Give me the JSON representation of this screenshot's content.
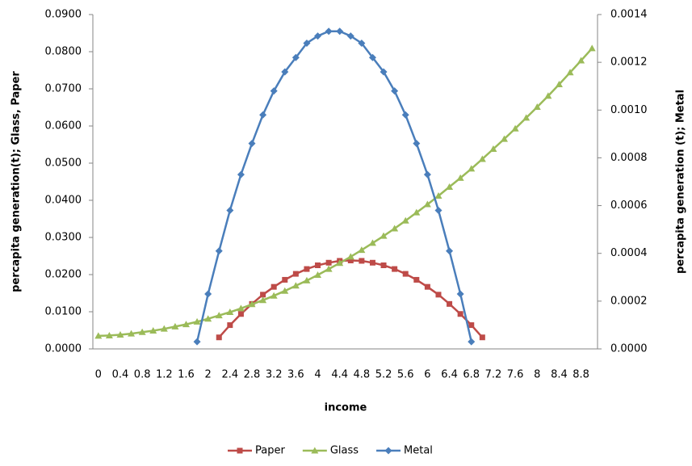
{
  "chart_data": {
    "type": "line",
    "x_label": "income",
    "y_label": "percapita generation(t); Glass,  Paper",
    "y2_label": "percapita generation (t); Metal",
    "categories": [
      "0",
      null,
      "0.4",
      null,
      "0.8",
      null,
      "1.2",
      null,
      "1.6",
      null,
      "2",
      null,
      "2.4",
      null,
      "2.8",
      null,
      "3.2",
      null,
      "3.6",
      null,
      "4",
      null,
      "4.4",
      null,
      "4.8",
      null,
      "5.2",
      null,
      "5.6",
      null,
      "6",
      null,
      "6.4",
      null,
      "6.8",
      null,
      "7.2",
      null,
      "7.6",
      null,
      "8",
      null,
      "8.4",
      null,
      "8.8",
      null
    ],
    "ylim": [
      0,
      0.09
    ],
    "yticks": [
      {
        "value": 0,
        "label": "0.0000"
      },
      {
        "value": 0.01,
        "label": "0.0100"
      },
      {
        "value": 0.02,
        "label": "0.0200"
      },
      {
        "value": 0.03,
        "label": "0.0300"
      },
      {
        "value": 0.04,
        "label": "0.0400"
      },
      {
        "value": 0.05,
        "label": "0.0500"
      },
      {
        "value": 0.06,
        "label": "0.0600"
      },
      {
        "value": 0.07,
        "label": "0.0700"
      },
      {
        "value": 0.08,
        "label": "0.0800"
      },
      {
        "value": 0.09,
        "label": "0.0900"
      }
    ],
    "y2lim": [
      0,
      0.0014
    ],
    "y2ticks": [
      {
        "value": 0,
        "label": "0.0000"
      },
      {
        "value": 0.0002,
        "label": "0.0002"
      },
      {
        "value": 0.0004,
        "label": "0.0004"
      },
      {
        "value": 0.0006,
        "label": "0.0006"
      },
      {
        "value": 0.0008,
        "label": "0.0008"
      },
      {
        "value": 0.001,
        "label": "0.0010"
      },
      {
        "value": 0.0012,
        "label": "0.0012"
      },
      {
        "value": 0.0014,
        "label": "0.0014"
      }
    ],
    "grid": false,
    "legend": "bottom",
    "series": [
      {
        "name": "Paper",
        "color": "#be4b48",
        "marker": "square",
        "values": [
          null,
          null,
          null,
          null,
          null,
          null,
          null,
          null,
          null,
          null,
          null,
          0.0031,
          0.0064,
          0.0094,
          0.0121,
          0.0146,
          0.0167,
          0.0186,
          0.0202,
          0.0215,
          0.0225,
          0.0232,
          0.0237,
          0.0238,
          0.0237,
          0.0232,
          0.0225,
          0.0215,
          0.0202,
          0.0186,
          0.0167,
          0.0146,
          0.0121,
          0.0094,
          0.0064,
          0.0031,
          null,
          null,
          null,
          null,
          null,
          null,
          null,
          null,
          null,
          null
        ]
      },
      {
        "name": "Glass",
        "color": "#9bbb59",
        "marker": "triangle",
        "values": [
          0.0035,
          0.0036,
          0.0038,
          0.0041,
          0.0045,
          0.0049,
          0.0054,
          0.006,
          0.0066,
          0.0073,
          0.0081,
          0.009,
          0.0099,
          0.0109,
          0.012,
          0.0131,
          0.0143,
          0.0156,
          0.017,
          0.0184,
          0.0199,
          0.0215,
          0.0231,
          0.0248,
          0.0266,
          0.0285,
          0.0304,
          0.0324,
          0.0345,
          0.0367,
          0.0389,
          0.0412,
          0.0436,
          0.046,
          0.0485,
          0.0511,
          0.0538,
          0.0565,
          0.0593,
          0.0622,
          0.0651,
          0.0681,
          0.0712,
          0.0744,
          0.0776,
          0.0809
        ]
      },
      {
        "name": "Metal",
        "color": "#4a7ebb",
        "marker": "diamond",
        "axis": "y2",
        "values": [
          null,
          null,
          null,
          null,
          null,
          null,
          null,
          null,
          null,
          3e-05,
          0.00023,
          0.00041,
          0.00058,
          0.00073,
          0.00086,
          0.00098,
          0.00108,
          0.00116,
          0.00122,
          0.00128,
          0.00131,
          0.00133,
          0.00133,
          0.00131,
          0.00128,
          0.00122,
          0.00116,
          0.00108,
          0.00098,
          0.00086,
          0.00073,
          0.00058,
          0.00041,
          0.00023,
          3e-05,
          null,
          null,
          null,
          null,
          null,
          null,
          null,
          null,
          null,
          null,
          null
        ]
      }
    ]
  }
}
